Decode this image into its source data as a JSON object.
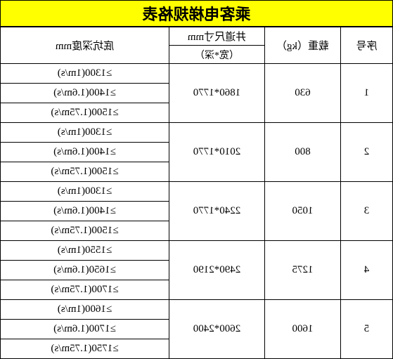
{
  "title": "乘客电梯规格表",
  "headers": {
    "sn": "序号",
    "load": "载重（kg）",
    "shaft": "井道尺寸mm",
    "shaft_sub": "（宽*深）",
    "pit": "底坑深度mm"
  },
  "rows": [
    {
      "sn": "1",
      "load": "630",
      "shaft": "1860*1770",
      "pits": [
        "≥1300(1m/s)",
        "≥1400(1.6m/s)",
        "≥1500(1.75m/s)"
      ]
    },
    {
      "sn": "2",
      "load": "800",
      "shaft": "2010*1770",
      "pits": [
        "≥1300(1m/s)",
        "≥1400(1.6m/s)",
        "≥1500(1.75m/s)"
      ]
    },
    {
      "sn": "3",
      "load": "1050",
      "shaft": "2240*1770",
      "pits": [
        "≥1300(1m/s)",
        "≥1400(1.6m/s)",
        "≥1500(1.75m/s)"
      ]
    },
    {
      "sn": "4",
      "load": "1275",
      "shaft": "2490*2190",
      "pits": [
        "≥1550(1m/s)",
        "≥1650(1.6m/s)",
        "≥1700(1.75m/s)"
      ]
    },
    {
      "sn": "5",
      "load": "1600",
      "shaft": "2600*2400",
      "pits": [
        "≥1600(1m/s)",
        "≥1700(1.6m/s)",
        "≥1750(1.75m/s)"
      ]
    }
  ],
  "colors": {
    "title_bg": "#ffff00",
    "border": "#000000",
    "background": "#ffffff"
  }
}
